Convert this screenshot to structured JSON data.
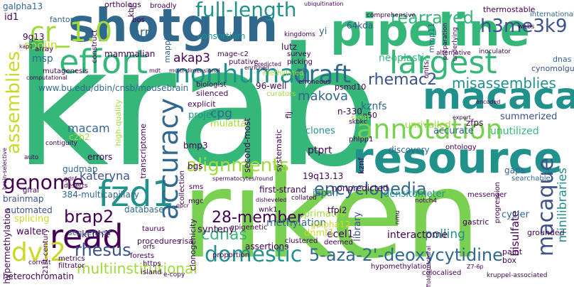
{
  "cloud": {
    "palette": {
      "purple": "#440154",
      "indigo": "#3b528b",
      "blue": "#31688e",
      "teal": "#21918c",
      "green": "#35b779",
      "lime": "#7ad151",
      "yellow": "#c9d928",
      "lightgreen": "#a0da39"
    },
    "words": {
      "krab": "krab",
      "riken": "riken",
      "shotgun": "shotgun",
      "pipeline": "pipeline",
      "resource": "resource",
      "macaca": "macaca",
      "annotation": "annotation",
      "largest": "largest",
      "fzd1": "fzd1",
      "read": "read",
      "accuracy": "accuracy",
      "effort": "effort",
      "nonhuman": "nonhuman",
      "macaque": "macaque",
      "cr_1_0": "cr_1.0",
      "genome": "genome",
      "assemblies": "assemblies",
      "full_length": "full-length",
      "draft": "draft",
      "rearrayed": "rearrayed",
      "h3me3k9": "h3me3k9",
      "alignments": "alignments",
      "encyclopedia": "encyclopedia",
      "domestic": "domestic",
      "deoxycytidine": "5-aza-2'-deoxycytidine",
      "dvl2": "dvl2",
      "rhesus": "rhesus",
      "cdnas": "cdnas",
      "brap2": "brap2",
      "multiinstitutional": "multiinstitutional",
      "misassemblies": "misassemblies",
      "rhemac2": "rhemac2",
      "minilibraries": "minilibraries",
      "member28": "28-member",
      "kateryna": "kateryna",
      "akap3": "akap3",
      "nrni": "nrni",
      "soojin": "soojin",
      "msp": "msp",
      "mammalian": "mammalian",
      "makova": "makova",
      "cpg": "cpg",
      "macam": "macam",
      "url": "www.bu.edu/dbin/cnsb/mousebrain",
      "consortium": "consortium",
      "neoplastic": "neoplastic",
      "kznfs": "kznfs",
      "unrivalled": "unrivalled",
      "zfps": "zfps",
      "clones": "clones",
      "ptprt": "ptprt",
      "unutilized": "unutilized",
      "accurate": "accurate",
      "discovery": "discovery",
      "summerized": "summerized",
      "bisulfate": "bisulfate",
      "cycler": "cycler",
      "polling": "polling",
      "interactome": "interactome",
      "library": "library",
      "densitometer": "densitometer",
      "nonpredicted": "nonpredicted",
      "japan": "japan",
      "primates": "primates",
      "methylation": "methylation",
      "synteny": "synteny",
      "ecel1": "ecel1",
      "dnmt1": "dnmt1",
      "assertions": "assertions",
      "kcnh1": "kcnh1",
      "walter": "walter",
      "splicing": "splicing",
      "automated": "automated",
      "brainmap": "brainmap",
      "multicapillary": "384-multicapillary",
      "sequenced": "sequenced",
      "database": "database",
      "procedures": "procedures",
      "risa": "risa",
      "hypermethylation": "hypermethylation",
      "heterochromatin": "heterochromatin",
      "gudmap": "gudmap",
      "errors": "errors",
      "c2h2": "c2h2",
      "bmp3": "bmp3",
      "bgs": "bgs",
      "q13": "9q13",
      "id1": "id1",
      "galpha13": "galpha13",
      "galpha12": "galpha12",
      "tfpi2": "tfpi2",
      "first_strand": "first-strand",
      "q19": "19q13.13",
      "kb64": "64kda",
      "lutz": "lutz",
      "yi": "yi",
      "mmp11": "mmp11",
      "thermostable": "thermostable",
      "international": "international",
      "cynomolgus": "cynomolgus",
      "dnas": "dnas",
      "n330": "n-330",
      "n50": "n50",
      "sigirr": "sigirr",
      "mulatta": "mulatta",
      "project": "project",
      "explicit": "explicit",
      "curators": "curators",
      "psmd10": "psmd10",
      "rep96": "96-well",
      "silenced": "silenced",
      "biologist": "biologist",
      "putative": "putative",
      "methylated": "methylated",
      "mage_c2": "mage-c2",
      "fantom": "fantom",
      "kbe": "kbe",
      "bos": "bos",
      "orthologs": "orthologs",
      "broadly": "broadly",
      "gaps": "gaps",
      "gastric": "gastric",
      "paint": "paint",
      "box": "box",
      "grounded": "grounded",
      "hypomethylation": "hypomethylation",
      "colocalised": "colocalised",
      "messenger": "messenger",
      "searchable": "searchable",
      "ontology": "ontology",
      "mutagenesis": "mutagenesis",
      "array": "array",
      "mapping": "mapping",
      "construct": "construct",
      "high_quality": "high-quality",
      "complementary": "complementary",
      "transcriptome": "transcriptome",
      "collection": "collection",
      "phlpp1": "phlpp1",
      "kznf": "kznf",
      "sms": "sms",
      "second_most": "second-most",
      "systematic": "systematic",
      "flj": "flj",
      "survey": "survey",
      "picking": "picking",
      "kingdoms": "kingdoms",
      "comprehensive": "comprehensive",
      "alternative": "alternative",
      "units": "units",
      "inoculator": "inoculator",
      "webs": "webs",
      "collated": "collated",
      "epigenetic": "epigenetic",
      "proportion": "proportion",
      "clustered": "clustered",
      "deemed": "deemed",
      "clonogenicity": "clonogenicity",
      "forests": "forests",
      "taurus": "taurus",
      "century21": "21st-century",
      "https": "https",
      "metrics": "metrics",
      "filtrator": "filtrator",
      "gfral": "gfral",
      "wnk1": "wnk1",
      "mgc": "mgc",
      "island": "island",
      "auto": "auto",
      "deserts": "deserts",
      "contiguity": "contiguity",
      "erroneous": "erroneous",
      "skbkc": "skbkc",
      "preparation": "preparation",
      "underlying": "underlying",
      "ubiquitination": "ubiquitination",
      "correct": "correct",
      "orfs": "orfs",
      "ecopy": "e-copy",
      "nmu": "nmu",
      "notch4": "notch4",
      "z7_6p": "Z7-6p",
      "kruppel": "kruppel-associated",
      "spermatocytes": "spermatocytes/round",
      "multi_dimensional": "multi-dimensional",
      "predicted": "predicted",
      "enriched": "enriched",
      "brain_selective": "brain-selective",
      "computational": "computational",
      "scaffold": "scaffold/structural",
      "progression": "progression",
      "kap1": "kap1",
      "qpcr": "qpcr",
      "gdnf": "gdnf",
      "disheveled": "disheveled",
      "mdt": "mdt",
      "expert": "expert",
      "encoded": "encoded"
    }
  }
}
